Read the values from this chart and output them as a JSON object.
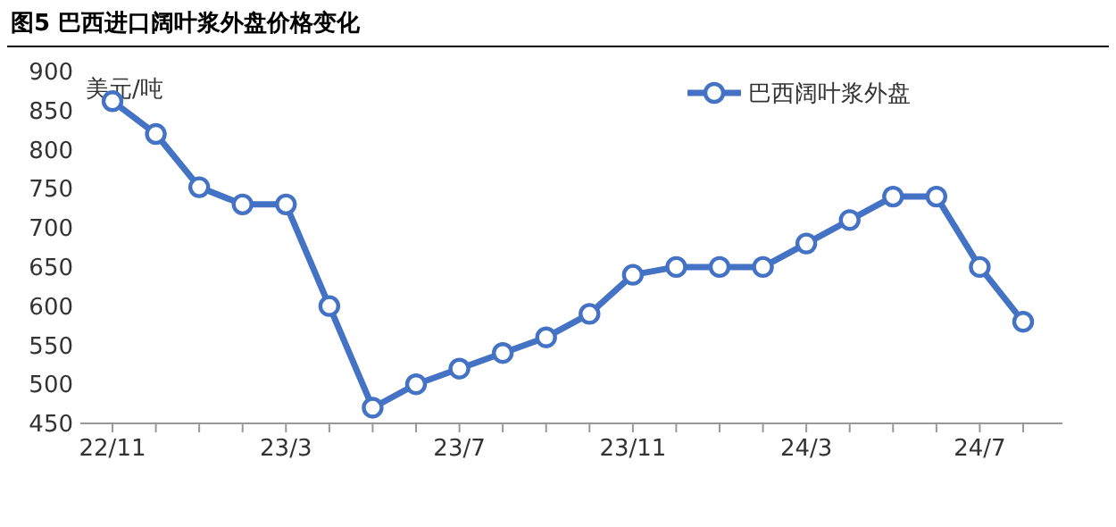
{
  "chart_data": {
    "type": "line",
    "title": "图5  巴西进口阔叶浆外盘价格变化",
    "ylabel": "美元/吨",
    "categories": [
      "22/11",
      null,
      null,
      null,
      "23/3",
      null,
      null,
      null,
      "23/7",
      null,
      null,
      null,
      "23/11",
      null,
      null,
      null,
      "24/3",
      null,
      null,
      null,
      "24/7",
      null
    ],
    "series": [
      {
        "name": "巴西阔叶浆外盘",
        "color": "#4472c4",
        "values": [
          862,
          820,
          752,
          730,
          730,
          600,
          470,
          500,
          520,
          540,
          560,
          590,
          640,
          650,
          650,
          650,
          680,
          710,
          740,
          740,
          650,
          580
        ]
      }
    ],
    "ylim": [
      450,
      900
    ],
    "yticks": [
      450,
      500,
      550,
      600,
      650,
      700,
      750,
      800,
      850,
      900
    ],
    "grid": false,
    "legend": "top right",
    "marker": "circle",
    "line_style": "solid"
  }
}
